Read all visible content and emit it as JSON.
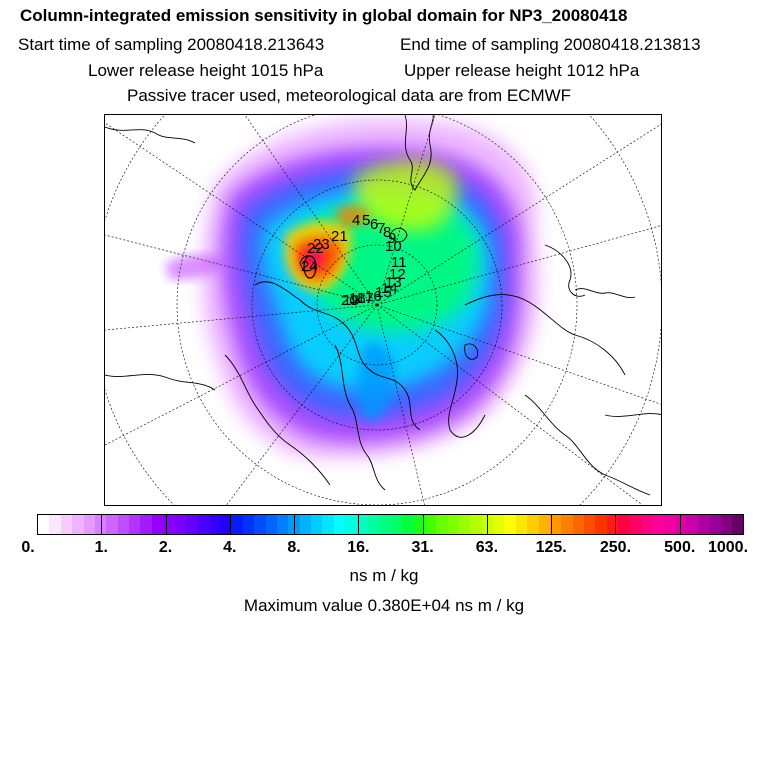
{
  "header": {
    "title": "Column-integrated emission sensitivity in global domain for NP3_20080418",
    "start_time": "Start time of sampling 20080418.213643",
    "end_time": "End time of sampling 20080418.213813",
    "lower_height": "Lower release height 1015 hPa",
    "upper_height": "Upper release height 1012 hPa",
    "tracer_info": "Passive tracer used, meteorological data are from ECMWF"
  },
  "map": {
    "projection": "north-polar-stereographic",
    "trajectory_markers": [
      "4",
      "5",
      "6",
      "7",
      "8",
      "9",
      "10",
      "11",
      "12",
      "13",
      "14",
      "15",
      "16",
      "17",
      "18",
      "19",
      "20",
      "21",
      "22",
      "23",
      "24"
    ]
  },
  "colorbar": {
    "unit": "ns m / kg",
    "tick_labels": [
      "0.",
      "1.",
      "2.",
      "4.",
      "8.",
      "16.",
      "31.",
      "63.",
      "125.",
      "250.",
      "500.",
      "1000."
    ],
    "colors": [
      "#ffffff",
      "#fbe6ff",
      "#f6ccff",
      "#f0b3ff",
      "#e699ff",
      "#d980ff",
      "#cc66ff",
      "#bf4dff",
      "#b333ff",
      "#a31aff",
      "#9500ff",
      "#8a00ff",
      "#7a00ff",
      "#6600ff",
      "#4d00ff",
      "#3300ff",
      "#2200ff",
      "#0a1aff",
      "#0033ff",
      "#004dff",
      "#0066ff",
      "#0080ff",
      "#0099ff",
      "#00b3ff",
      "#00ccff",
      "#00e6ff",
      "#00ffff",
      "#00ffe0",
      "#00ffc0",
      "#00ffa0",
      "#00ff80",
      "#00ff60",
      "#00ff40",
      "#1aff1a",
      "#40ff00",
      "#66ff00",
      "#80ff00",
      "#99ff00",
      "#b3ff00",
      "#ccff00",
      "#e6ff00",
      "#ffff00",
      "#ffe600",
      "#ffcc00",
      "#ffb300",
      "#ff9900",
      "#ff8000",
      "#ff6600",
      "#ff4d00",
      "#ff3300",
      "#ff1a1a",
      "#ff0040",
      "#ff0066",
      "#ff0080",
      "#ff0099",
      "#f000a0",
      "#e000a6",
      "#cc00aa",
      "#b000a0",
      "#990099",
      "#800080",
      "#660066"
    ]
  },
  "max_value": "Maximum value  0.380E+04 ns m / kg"
}
